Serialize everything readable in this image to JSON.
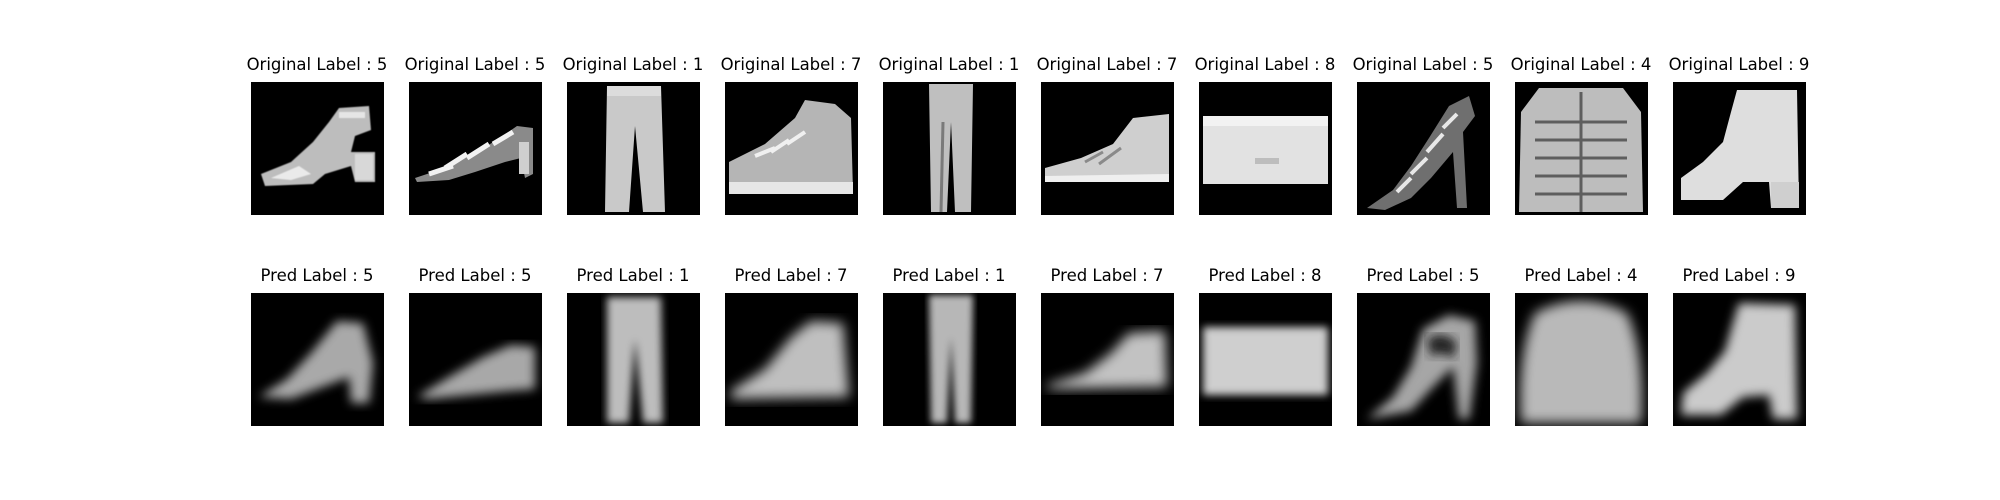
{
  "top_row": [
    {
      "label": "Original Label : 5",
      "icon": "sandal-icon"
    },
    {
      "label": "Original Label : 5",
      "icon": "strappy-sandal-icon"
    },
    {
      "label": "Original Label : 1",
      "icon": "trouser-icon"
    },
    {
      "label": "Original Label : 7",
      "icon": "sneaker-icon"
    },
    {
      "label": "Original Label : 1",
      "icon": "trouser-icon"
    },
    {
      "label": "Original Label : 7",
      "icon": "sneaker-icon"
    },
    {
      "label": "Original Label : 8",
      "icon": "bag-icon"
    },
    {
      "label": "Original Label : 5",
      "icon": "heeled-sandal-icon"
    },
    {
      "label": "Original Label : 4",
      "icon": "coat-icon"
    },
    {
      "label": "Original Label : 9",
      "icon": "ankle-boot-icon"
    }
  ],
  "bottom_row": [
    {
      "label": "Pred Label : 5",
      "icon": "blurry-sandal-icon"
    },
    {
      "label": "Pred Label : 5",
      "icon": "blurry-sandal-icon"
    },
    {
      "label": "Pred Label : 1",
      "icon": "blurry-trouser-icon"
    },
    {
      "label": "Pred Label : 7",
      "icon": "blurry-sneaker-icon"
    },
    {
      "label": "Pred Label : 1",
      "icon": "blurry-trouser-icon"
    },
    {
      "label": "Pred Label : 7",
      "icon": "blurry-sneaker-icon"
    },
    {
      "label": "Pred Label : 8",
      "icon": "blurry-bag-icon"
    },
    {
      "label": "Pred Label : 5",
      "icon": "blurry-heeled-sandal-icon"
    },
    {
      "label": "Pred Label : 4",
      "icon": "blurry-coat-icon"
    },
    {
      "label": "Pred Label : 9",
      "icon": "blurry-ankle-boot-icon"
    }
  ]
}
